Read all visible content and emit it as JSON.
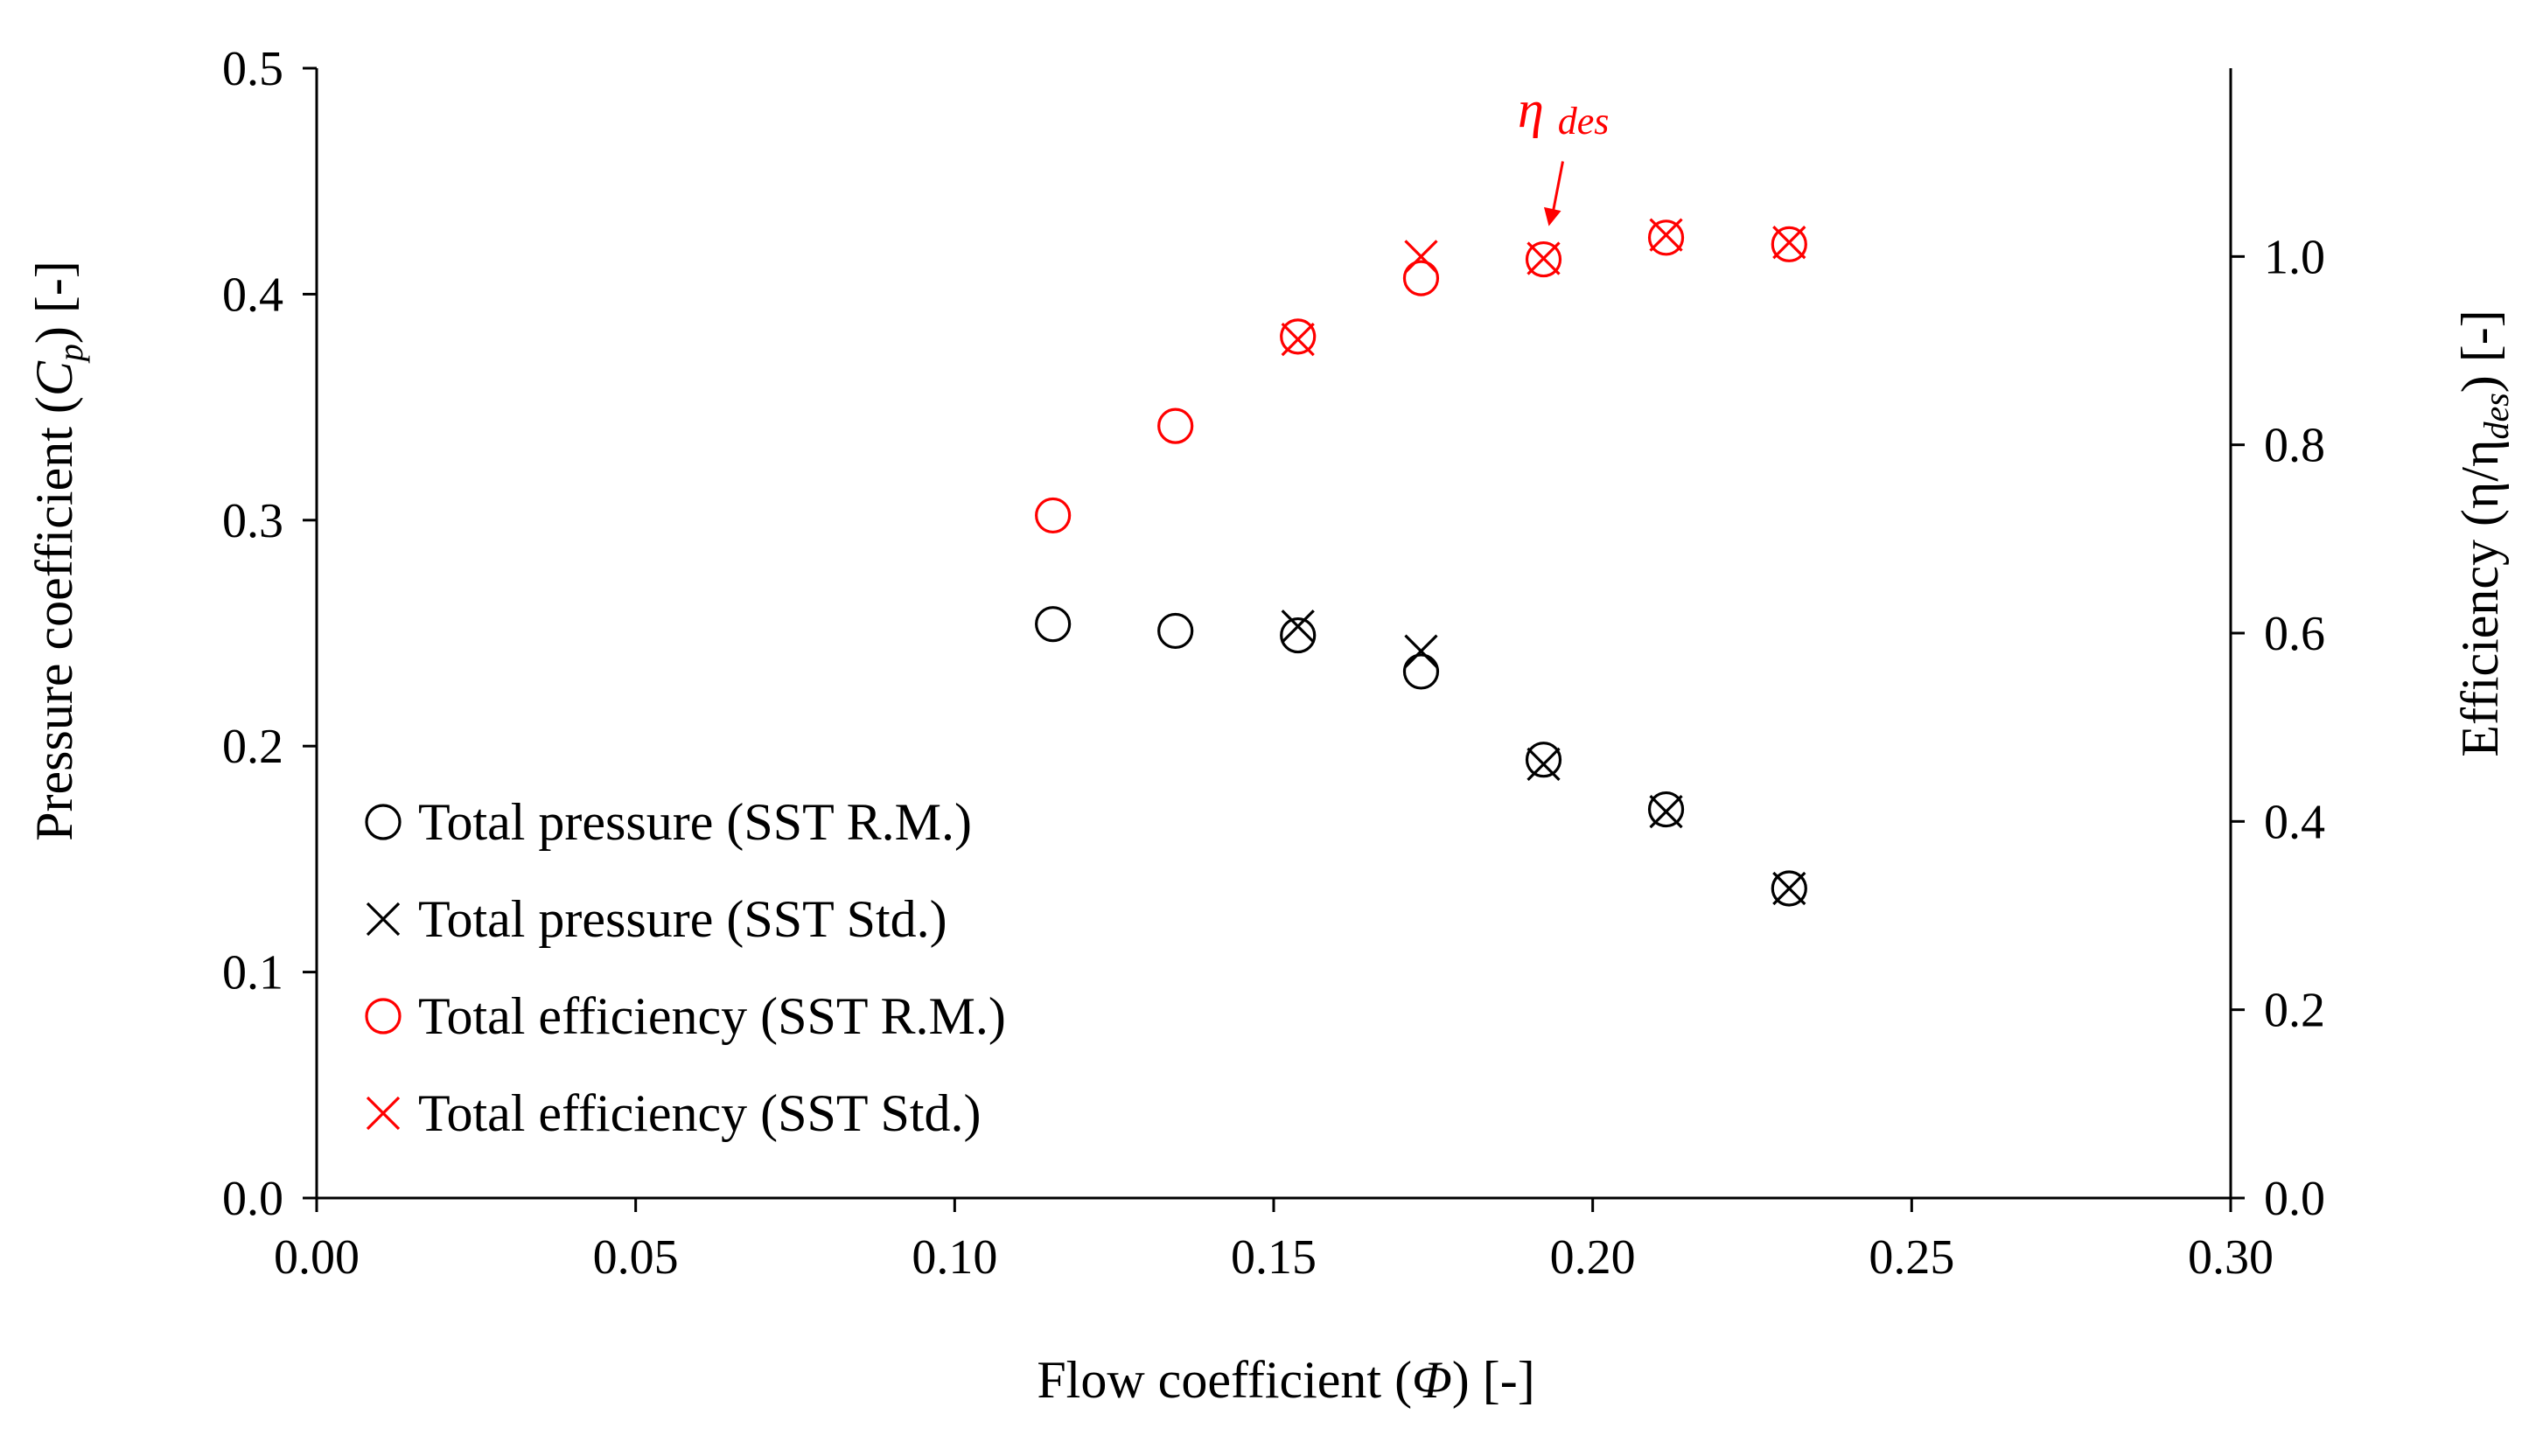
{
  "chart_data": {
    "type": "scatter",
    "x_axis": {
      "label": "Flow coefficient (Φ) [-]",
      "label_parts": [
        "Flow coefficient (",
        "Φ",
        ") [-]"
      ],
      "range": [
        0,
        0.3
      ],
      "ticks": [
        0,
        0.05,
        0.1,
        0.15,
        0.2,
        0.25,
        0.3
      ],
      "tick_labels": [
        "0.00",
        "0.05",
        "0.10",
        "0.15",
        "0.20",
        "0.25",
        "0.30"
      ]
    },
    "y_axis_left": {
      "label": "Pressure coefficient (Cp) [-]",
      "label_parts": [
        "Pressure coefficient (",
        "C",
        "p",
        ") [-]"
      ],
      "range": [
        0,
        0.5
      ],
      "ticks": [
        0,
        0.1,
        0.2,
        0.3,
        0.4,
        0.5
      ],
      "tick_labels": [
        "0.0",
        "0.1",
        "0.2",
        "0.3",
        "0.4",
        "0.5"
      ]
    },
    "y_axis_right": {
      "label": "Efficiency (η/η des) [-]",
      "label_parts": [
        "Efficiency (η/η",
        "des",
        ") [-]"
      ],
      "range": [
        0,
        1.2
      ],
      "ticks": [
        0,
        0.2,
        0.4,
        0.6,
        0.8,
        1.0
      ],
      "tick_labels": [
        "0.0",
        "0.2",
        "0.4",
        "0.6",
        "0.8",
        "1.0"
      ]
    },
    "series": [
      {
        "name": "Total pressure (SST R.M.)",
        "marker": "circle",
        "color": "#000000",
        "axis": "left",
        "x": [
          0.1154,
          0.1346,
          0.1538,
          0.1731,
          0.1923,
          0.2115,
          0.2308
        ],
        "y": [
          0.254,
          0.251,
          0.249,
          0.233,
          0.194,
          0.172,
          0.137
        ]
      },
      {
        "name": "Total pressure (SST Std.)",
        "marker": "x",
        "color": "#000000",
        "axis": "left",
        "x": [
          0.1538,
          0.1731,
          0.1923,
          0.2115,
          0.2308
        ],
        "y": [
          0.253,
          0.242,
          0.192,
          0.171,
          0.137
        ]
      },
      {
        "name": "Total efficiency (SST R.M.)",
        "marker": "circle",
        "color": "#ff0000",
        "axis": "right",
        "x": [
          0.1154,
          0.1346,
          0.1538,
          0.1731,
          0.1923,
          0.2115,
          0.2308
        ],
        "y": [
          0.725,
          0.82,
          0.915,
          0.977,
          0.997,
          1.02,
          1.013
        ]
      },
      {
        "name": "Total efficiency (SST Std.)",
        "marker": "x",
        "color": "#ff0000",
        "axis": "right",
        "x": [
          0.1538,
          0.1731,
          0.1923,
          0.2115,
          0.2308
        ],
        "y": [
          0.912,
          1.0,
          0.998,
          1.023,
          1.015
        ]
      }
    ],
    "annotation": {
      "text": "η des",
      "symbol": "η",
      "subscript": "des",
      "color": "#ff0000",
      "points_to": {
        "x": 0.1923,
        "y": 0.997,
        "axis": "right"
      }
    },
    "legend_position": "lower-left"
  }
}
